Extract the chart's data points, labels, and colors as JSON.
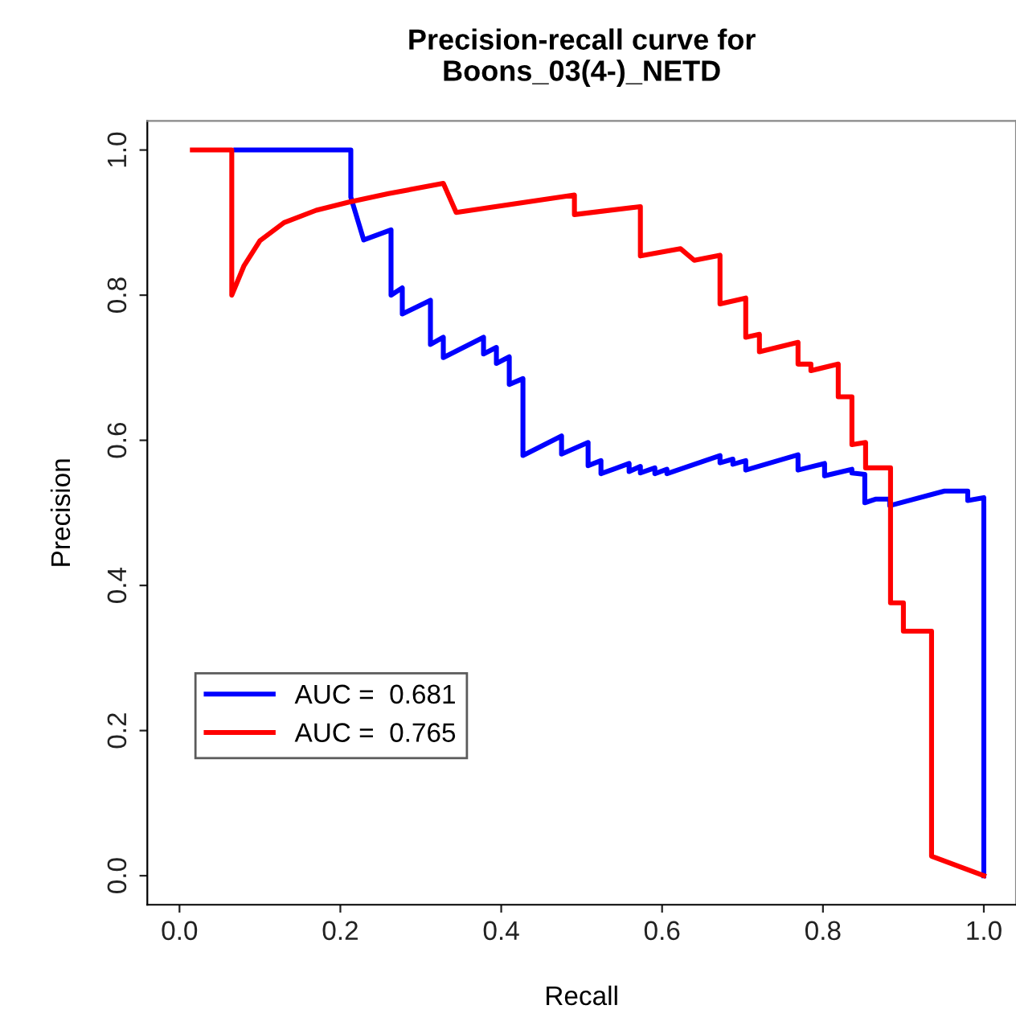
{
  "chart_data": {
    "type": "line",
    "title": "Precision-recall curve for\nBoons_03(4-)_NETD",
    "xlabel": "Recall",
    "ylabel": "Precision",
    "xlim": [
      -0.04,
      1.04
    ],
    "ylim": [
      -0.04,
      1.04
    ],
    "xticks": [
      {
        "value": 0,
        "label": "0.0"
      },
      0.2,
      0.4,
      0.6,
      0.8,
      {
        "value": 1,
        "label": "1.0"
      }
    ],
    "yticks": [
      {
        "value": 0,
        "label": "0.0"
      },
      0.2,
      0.4,
      0.6,
      0.8,
      {
        "value": 1,
        "label": "1.0"
      }
    ],
    "grid": false,
    "legend": "bottom left",
    "marker": "none",
    "line_style": "solid",
    "series": [
      {
        "name": "AUC =  0.681",
        "color": "#0000ff",
        "x": [
          0.07,
          0.213,
          0.213,
          0.229,
          0.263,
          0.263,
          0.277,
          0.277,
          0.312,
          0.312,
          0.328,
          0.328,
          0.378,
          0.378,
          0.394,
          0.394,
          0.41,
          0.41,
          0.427,
          0.427,
          0.475,
          0.475,
          0.508,
          0.508,
          0.524,
          0.524,
          0.559,
          0.559,
          0.573,
          0.573,
          0.591,
          0.591,
          0.606,
          0.606,
          0.672,
          0.672,
          0.688,
          0.688,
          0.704,
          0.704,
          0.769,
          0.769,
          0.802,
          0.802,
          0.836,
          0.836,
          0.852,
          0.852,
          0.866,
          0.883,
          0.883,
          0.951,
          0.98,
          0.98,
          1.0,
          1.0
        ],
        "values": [
          1.0,
          1.0,
          0.935,
          0.876,
          0.89,
          0.8,
          0.81,
          0.774,
          0.793,
          0.732,
          0.742,
          0.714,
          0.742,
          0.719,
          0.728,
          0.706,
          0.715,
          0.677,
          0.685,
          0.579,
          0.606,
          0.581,
          0.597,
          0.565,
          0.572,
          0.554,
          0.568,
          0.557,
          0.564,
          0.555,
          0.562,
          0.554,
          0.56,
          0.554,
          0.579,
          0.569,
          0.574,
          0.567,
          0.572,
          0.559,
          0.58,
          0.559,
          0.568,
          0.551,
          0.56,
          0.555,
          0.553,
          0.514,
          0.519,
          0.519,
          0.51,
          0.53,
          0.53,
          0.517,
          0.521,
          0.0
        ]
      },
      {
        "name": "AUC =  0.765",
        "color": "#ff0000",
        "x": [
          0.016,
          0.065,
          0.065,
          0.08,
          0.1,
          0.13,
          0.17,
          0.21,
          0.26,
          0.328,
          0.344,
          0.491,
          0.491,
          0.573,
          0.573,
          0.623,
          0.64,
          0.672,
          0.672,
          0.704,
          0.704,
          0.721,
          0.721,
          0.769,
          0.769,
          0.785,
          0.785,
          0.819,
          0.819,
          0.836,
          0.836,
          0.853,
          0.853,
          0.884,
          0.884,
          0.9,
          0.9,
          0.935,
          0.935,
          1.0
        ],
        "values": [
          1.0,
          1.0,
          0.8,
          0.84,
          0.875,
          0.9,
          0.917,
          0.928,
          0.94,
          0.954,
          0.914,
          0.938,
          0.911,
          0.922,
          0.854,
          0.864,
          0.848,
          0.855,
          0.788,
          0.796,
          0.742,
          0.746,
          0.722,
          0.735,
          0.705,
          0.705,
          0.696,
          0.705,
          0.66,
          0.66,
          0.594,
          0.597,
          0.562,
          0.562,
          0.376,
          0.376,
          0.337,
          0.337,
          0.027,
          0.0
        ]
      }
    ]
  }
}
